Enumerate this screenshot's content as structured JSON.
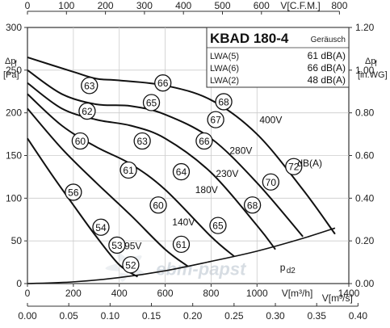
{
  "chart_data": {
    "type": "line",
    "x_units": {
      "main": "V[m³/h]",
      "top": "V[C.F.M.]",
      "bottom": "V[m³/s]"
    },
    "y_units": {
      "left_symbol": "Δpf",
      "left_unit": "[Pa]",
      "right_symbol": "Δpf",
      "right_unit": "[in.WG]"
    },
    "xlim": [
      0,
      1400
    ],
    "ylim": [
      0,
      300
    ],
    "ticks": {
      "main_x": [
        "0",
        "200",
        "400",
        "600",
        "800",
        "1000",
        "1400"
      ],
      "main_x_values": [
        0,
        200,
        400,
        600,
        800,
        1000,
        1400
      ],
      "top_x": [
        "0",
        "100",
        "200",
        "300",
        "400",
        "500",
        "600",
        "800"
      ],
      "top_x_values": [
        0,
        100,
        200,
        300,
        400,
        500,
        600,
        800
      ],
      "bottom_x": [
        "0.00",
        "0.05",
        "0.10",
        "0.15",
        "0.20",
        "0.25",
        "0.30",
        "0.35",
        "0.40"
      ],
      "bottom_x_values": [
        0,
        0.05,
        0.1,
        0.15,
        0.2,
        0.25,
        0.3,
        0.35,
        0.4
      ],
      "left_y": [
        "0",
        "50",
        "100",
        "150",
        "200",
        "250",
        "300"
      ],
      "left_y_values": [
        0,
        50,
        100,
        150,
        200,
        250,
        300
      ],
      "right_y": [
        "0.00",
        "0.20",
        "0.40",
        "0.60",
        "0.80",
        "1.00",
        "1.20"
      ],
      "right_y_values": [
        0,
        0.2,
        0.4,
        0.6,
        0.8,
        1.0,
        1.2
      ]
    },
    "title_box": {
      "model": "KBAD 180-4",
      "label": "Geräusch",
      "rows": [
        {
          "name": "LWA(5)",
          "value": "61 dB(A)"
        },
        {
          "name": "LWA(6)",
          "value": "66 dB(A)"
        },
        {
          "name": "LWA(2)",
          "value": "48 dB(A)"
        }
      ]
    },
    "series": [
      {
        "name": "400V",
        "x": [
          0,
          200,
          300,
          400,
          600,
          800,
          1000,
          1200,
          1340
        ],
        "y": [
          265,
          248,
          240,
          238,
          232,
          215,
          175,
          110,
          58
        ]
      },
      {
        "name": "280V",
        "x": [
          0,
          150,
          300,
          450,
          600,
          800,
          1000,
          1200
        ],
        "y": [
          250,
          222,
          210,
          208,
          198,
          170,
          118,
          55
        ]
      },
      {
        "name": "230V",
        "x": [
          0,
          150,
          300,
          450,
          600,
          800,
          1000,
          1080
        ],
        "y": [
          235,
          205,
          192,
          185,
          170,
          130,
          68,
          40
        ]
      },
      {
        "name": "180V",
        "x": [
          0,
          150,
          300,
          450,
          600,
          800,
          900
        ],
        "y": [
          222,
          185,
          160,
          140,
          110,
          55,
          32
        ]
      },
      {
        "name": "140V",
        "x": [
          0,
          150,
          300,
          450,
          600,
          700
        ],
        "y": [
          205,
          158,
          118,
          80,
          40,
          20
        ]
      },
      {
        "name": "95V",
        "x": [
          0,
          100,
          200,
          300,
          400,
          480
        ],
        "y": [
          170,
          130,
          92,
          55,
          22,
          8
        ]
      }
    ],
    "pd2_curve": {
      "name": "pd2",
      "x": [
        0,
        200,
        400,
        600,
        800,
        1000,
        1200,
        1340
      ],
      "y": [
        0,
        2,
        7,
        15,
        26,
        38,
        53,
        65
      ]
    },
    "dba_marks": [
      {
        "label": "63",
        "x": 270,
        "y": 232
      },
      {
        "label": "66",
        "x": 590,
        "y": 235
      },
      {
        "label": "68",
        "x": 855,
        "y": 213
      },
      {
        "label": "62",
        "x": 260,
        "y": 202
      },
      {
        "label": "65",
        "x": 540,
        "y": 212
      },
      {
        "label": "67",
        "x": 820,
        "y": 192
      },
      {
        "label": "72",
        "x": 1160,
        "y": 137
      },
      {
        "label": "60",
        "x": 230,
        "y": 167
      },
      {
        "label": "63",
        "x": 500,
        "y": 167
      },
      {
        "label": "66",
        "x": 770,
        "y": 167
      },
      {
        "label": "70",
        "x": 1060,
        "y": 119
      },
      {
        "label": "61",
        "x": 440,
        "y": 133
      },
      {
        "label": "64",
        "x": 670,
        "y": 131
      },
      {
        "label": "68",
        "x": 980,
        "y": 92
      },
      {
        "label": "56",
        "x": 200,
        "y": 107
      },
      {
        "label": "60",
        "x": 570,
        "y": 92
      },
      {
        "label": "65",
        "x": 830,
        "y": 68
      },
      {
        "label": "54",
        "x": 320,
        "y": 66
      },
      {
        "label": "61",
        "x": 670,
        "y": 46
      },
      {
        "label": "53",
        "x": 390,
        "y": 45
      },
      {
        "label": "52",
        "x": 450,
        "y": 22
      }
    ],
    "curve_labels": [
      {
        "text": "400V",
        "x": 1060,
        "y": 188
      },
      {
        "text": "280V",
        "x": 930,
        "y": 152
      },
      {
        "text": "230V",
        "x": 870,
        "y": 125
      },
      {
        "text": "180V",
        "x": 780,
        "y": 106
      },
      {
        "text": "140V",
        "x": 680,
        "y": 68
      },
      {
        "text": "95V",
        "x": 460,
        "y": 40
      },
      {
        "text": "dB(A)",
        "x": 1230,
        "y": 137
      },
      {
        "text": "pd2",
        "x": 1100,
        "y": 15
      }
    ],
    "watermark": "ebm-papst"
  }
}
